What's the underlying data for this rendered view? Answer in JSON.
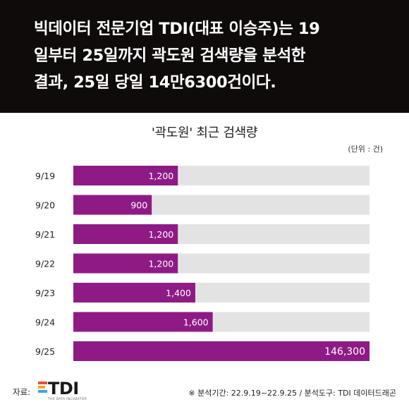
{
  "header": {
    "lines": [
      "빅데이터 전문기업 TDI(대표 이승주)는 19",
      "일부터 25일까지 곽도원 검색량을 분석한",
      "결과, 25일 당일 14만6300건이다."
    ]
  },
  "chart_data": {
    "type": "bar",
    "orientation": "horizontal",
    "title": "'곽도원' 최근 검색량",
    "unit": "(단위 : 건)",
    "categories": [
      "9/19",
      "9/20",
      "9/21",
      "9/22",
      "9/23",
      "9/24",
      "9/25"
    ],
    "values": [
      1200,
      900,
      1200,
      1200,
      1400,
      1600,
      146300
    ],
    "value_labels": [
      "1,200",
      "900",
      "1,200",
      "1,200",
      "1,400",
      "1,600",
      "146,300"
    ],
    "axis_break": true,
    "bar_color": "#8e1b85",
    "track_color": "#e3e3e3"
  },
  "footer": {
    "source_label": "자료:",
    "logo_text": "TDI",
    "logo_sub": "THE DATA INCUBATOR",
    "logo_colors": [
      "#e94e3c",
      "#f5a623",
      "#3aa7e0"
    ],
    "note": "※ 분석기간: 22.9.19~22.9.25 / 분석도구: TDI 데이터드래곤"
  }
}
